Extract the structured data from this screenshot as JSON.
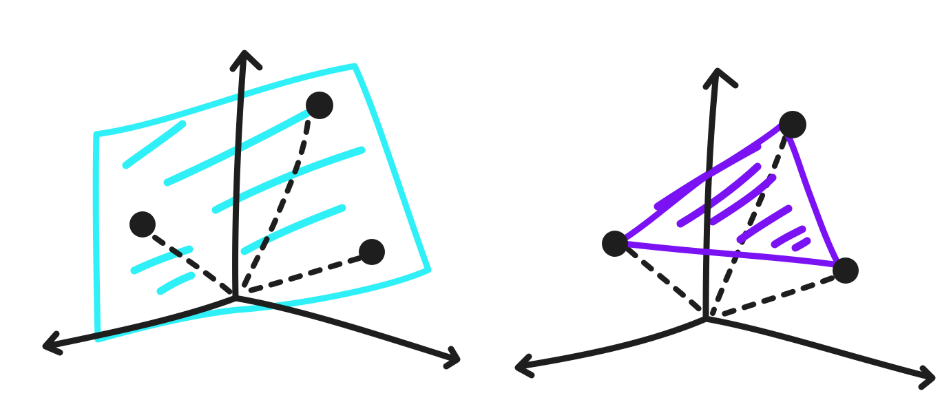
{
  "colors": {
    "ink": "#1e1e1e",
    "plane": "#2ff0f7",
    "triangle": "#7a12f4",
    "background": "#ffffff"
  },
  "diagrams": [
    {
      "name": "plane-through-three-points",
      "shape": "plane",
      "points": 3,
      "surface_color": "#2ff0f7",
      "axes": 3,
      "arrowheads": 3
    },
    {
      "name": "triangle-through-three-points",
      "shape": "triangle",
      "points": 3,
      "surface_color": "#7a12f4",
      "axes": 3,
      "arrowheads": 3
    }
  ]
}
